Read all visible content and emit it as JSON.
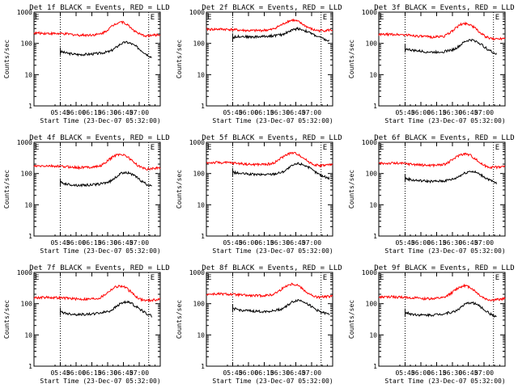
{
  "chart_data": [
    {
      "type": "line",
      "title": "Det 1f BLACK = Events, RED = LLD",
      "ylabel": "Counts/sec",
      "xlabel": "Start Time (23-Dec-07 05:32:00)",
      "marker_label": "E",
      "yscale": "log",
      "ylim": [
        1,
        1000
      ],
      "ytick_labels": [
        "1",
        "10",
        "100",
        "1000"
      ],
      "xtick_labels": [
        "05:45",
        "06:00",
        "06:15",
        "06:30",
        "06:45",
        "07:00"
      ],
      "x_range_minutes": [
        -12,
        108
      ],
      "vlines_minutes": [
        13,
        97
      ],
      "series": [
        {
          "name": "Events",
          "color": "#000000",
          "x_minutes": [
            13,
            20,
            30,
            40,
            50,
            60,
            65,
            70,
            75,
            80,
            85,
            90,
            95,
            100
          ],
          "values": [
            55,
            48,
            44,
            45,
            48,
            55,
            70,
            95,
            110,
            100,
            80,
            60,
            45,
            36
          ]
        },
        {
          "name": "LLD",
          "color": "#ff0000",
          "x_minutes": [
            -12,
            0,
            10,
            20,
            30,
            40,
            50,
            55,
            60,
            65,
            70,
            75,
            80,
            85,
            90,
            95,
            100,
            108
          ],
          "values": [
            215,
            210,
            205,
            200,
            185,
            185,
            195,
            230,
            310,
            420,
            500,
            440,
            320,
            230,
            185,
            175,
            180,
            190
          ]
        }
      ]
    },
    {
      "type": "line",
      "title": "Det 2f BLACK = Events, RED = LLD",
      "ylabel": "Counts/sec",
      "xlabel": "Start Time (23-Dec-07 05:32:00)",
      "marker_label": "E",
      "yscale": "log",
      "ylim": [
        1,
        1000
      ],
      "ytick_labels": [
        "1",
        "10",
        "100",
        "1000"
      ],
      "xtick_labels": [
        "05:45",
        "06:00",
        "06:15",
        "06:30",
        "06:45",
        "07:00"
      ],
      "x_range_minutes": [
        -12,
        108
      ],
      "vlines_minutes": [
        13,
        97
      ],
      "series": [
        {
          "name": "Events",
          "color": "#000000",
          "x_minutes": [
            13,
            20,
            30,
            40,
            50,
            60,
            65,
            70,
            75,
            80,
            85,
            90,
            95,
            100,
            105
          ],
          "values": [
            155,
            170,
            160,
            165,
            175,
            190,
            230,
            270,
            300,
            270,
            230,
            190,
            160,
            135,
            115
          ]
        },
        {
          "name": "LLD",
          "color": "#ff0000",
          "x_minutes": [
            -12,
            0,
            10,
            20,
            30,
            40,
            50,
            55,
            60,
            65,
            70,
            75,
            80,
            85,
            90,
            95,
            100,
            108
          ],
          "values": [
            280,
            285,
            280,
            265,
            255,
            260,
            275,
            330,
            400,
            500,
            560,
            500,
            400,
            320,
            270,
            255,
            260,
            270
          ]
        }
      ]
    },
    {
      "type": "line",
      "title": "Det 3f BLACK = Events, RED = LLD",
      "ylabel": "Counts/sec",
      "xlabel": "Start Time (23-Dec-07 05:32:00)",
      "marker_label": "E",
      "yscale": "log",
      "ylim": [
        1,
        1000
      ],
      "ytick_labels": [
        "1",
        "10",
        "100",
        "1000"
      ],
      "xtick_labels": [
        "05:45",
        "06:00",
        "06:15",
        "06:30",
        "06:45",
        "07:00"
      ],
      "x_range_minutes": [
        -12,
        108
      ],
      "vlines_minutes": [
        13,
        97
      ],
      "series": [
        {
          "name": "Events",
          "color": "#000000",
          "x_minutes": [
            13,
            20,
            30,
            40,
            50,
            60,
            65,
            70,
            75,
            80,
            85,
            90,
            95,
            100
          ],
          "values": [
            68,
            60,
            55,
            52,
            55,
            65,
            85,
            115,
            130,
            120,
            95,
            70,
            55,
            45
          ]
        },
        {
          "name": "LLD",
          "color": "#ff0000",
          "x_minutes": [
            -12,
            0,
            10,
            20,
            30,
            40,
            50,
            55,
            60,
            65,
            70,
            75,
            80,
            85,
            90,
            95,
            100,
            108
          ],
          "values": [
            190,
            195,
            190,
            180,
            165,
            160,
            170,
            210,
            290,
            390,
            440,
            400,
            300,
            210,
            160,
            140,
            140,
            150
          ]
        }
      ]
    },
    {
      "type": "line",
      "title": "Det 4f BLACK = Events, RED = LLD",
      "ylabel": "Counts/sec",
      "xlabel": "Start Time (23-Dec-07 05:32:00)",
      "marker_label": "E",
      "yscale": "log",
      "ylim": [
        1,
        1000
      ],
      "ytick_labels": [
        "1",
        "10",
        "100",
        "1000"
      ],
      "xtick_labels": [
        "05:45",
        "06:00",
        "06:15",
        "06:30",
        "06:45",
        "07:00"
      ],
      "x_range_minutes": [
        -12,
        108
      ],
      "vlines_minutes": [
        13,
        97
      ],
      "series": [
        {
          "name": "Events",
          "color": "#000000",
          "x_minutes": [
            13,
            20,
            30,
            40,
            50,
            60,
            65,
            70,
            75,
            80,
            85,
            90,
            95,
            100
          ],
          "values": [
            52,
            45,
            42,
            43,
            46,
            55,
            72,
            98,
            112,
            100,
            78,
            58,
            45,
            38
          ]
        },
        {
          "name": "LLD",
          "color": "#ff0000",
          "x_minutes": [
            -12,
            0,
            10,
            20,
            30,
            40,
            50,
            55,
            60,
            65,
            70,
            75,
            80,
            85,
            90,
            95,
            100,
            108
          ],
          "values": [
            170,
            175,
            170,
            165,
            155,
            160,
            170,
            210,
            290,
            380,
            420,
            380,
            280,
            200,
            155,
            140,
            145,
            155
          ]
        }
      ]
    },
    {
      "type": "line",
      "title": "Det 5f BLACK = Events, RED = LLD",
      "ylabel": "Counts/sec",
      "xlabel": "Start Time (23-Dec-07 05:32:00)",
      "marker_label": "E",
      "yscale": "log",
      "ylim": [
        1,
        1000
      ],
      "ytick_labels": [
        "1",
        "10",
        "100",
        "1000"
      ],
      "xtick_labels": [
        "05:45",
        "06:00",
        "06:15",
        "06:30",
        "06:45",
        "07:00"
      ],
      "x_range_minutes": [
        -12,
        108
      ],
      "vlines_minutes": [
        13,
        97
      ],
      "series": [
        {
          "name": "Events",
          "color": "#000000",
          "x_minutes": [
            13,
            20,
            30,
            40,
            50,
            60,
            65,
            70,
            75,
            80,
            85,
            90,
            95,
            100,
            105
          ],
          "values": [
            110,
            100,
            95,
            92,
            95,
            110,
            140,
            180,
            210,
            195,
            160,
            120,
            95,
            80,
            70
          ]
        },
        {
          "name": "LLD",
          "color": "#ff0000",
          "x_minutes": [
            -12,
            0,
            10,
            20,
            30,
            40,
            50,
            55,
            60,
            65,
            70,
            75,
            80,
            85,
            90,
            95,
            100,
            108
          ],
          "values": [
            220,
            225,
            220,
            210,
            195,
            195,
            205,
            250,
            330,
            420,
            460,
            420,
            320,
            240,
            195,
            180,
            185,
            195
          ]
        }
      ]
    },
    {
      "type": "line",
      "title": "Det 6f BLACK = Events, RED = LLD",
      "ylabel": "Counts/sec",
      "xlabel": "Start Time (23-Dec-07 05:32:00)",
      "marker_label": "E",
      "yscale": "log",
      "ylim": [
        1,
        1000
      ],
      "ytick_labels": [
        "1",
        "10",
        "100",
        "1000"
      ],
      "xtick_labels": [
        "05:45",
        "06:00",
        "06:15",
        "06:30",
        "06:45",
        "07:00"
      ],
      "x_range_minutes": [
        -12,
        108
      ],
      "vlines_minutes": [
        13,
        97
      ],
      "series": [
        {
          "name": "Events",
          "color": "#000000",
          "x_minutes": [
            13,
            20,
            30,
            40,
            50,
            60,
            65,
            70,
            75,
            80,
            85,
            90,
            95,
            100
          ],
          "values": [
            70,
            62,
            58,
            56,
            58,
            68,
            85,
            105,
            120,
            110,
            90,
            72,
            58,
            48
          ]
        },
        {
          "name": "LLD",
          "color": "#ff0000",
          "x_minutes": [
            -12,
            0,
            10,
            20,
            30,
            40,
            50,
            55,
            60,
            65,
            70,
            75,
            80,
            85,
            90,
            95,
            100,
            108
          ],
          "values": [
            210,
            215,
            210,
            200,
            185,
            185,
            195,
            235,
            310,
            400,
            430,
            390,
            290,
            210,
            170,
            160,
            160,
            170
          ]
        }
      ]
    },
    {
      "type": "line",
      "title": "Det 7f BLACK = Events, RED = LLD",
      "ylabel": "Counts/sec",
      "xlabel": "Start Time (23-Dec-07 05:32:00)",
      "marker_label": "E",
      "yscale": "log",
      "ylim": [
        1,
        1000
      ],
      "ytick_labels": [
        "1",
        "10",
        "100",
        "1000"
      ],
      "xtick_labels": [
        "05:45",
        "06:00",
        "06:15",
        "06:30",
        "06:45",
        "07:00"
      ],
      "x_range_minutes": [
        -12,
        108
      ],
      "vlines_minutes": [
        13,
        97
      ],
      "series": [
        {
          "name": "Events",
          "color": "#000000",
          "x_minutes": [
            13,
            20,
            30,
            40,
            50,
            60,
            65,
            70,
            75,
            80,
            85,
            90,
            95,
            100
          ],
          "values": [
            55,
            48,
            45,
            46,
            50,
            58,
            75,
            100,
            115,
            105,
            82,
            62,
            48,
            40
          ]
        },
        {
          "name": "LLD",
          "color": "#ff0000",
          "x_minutes": [
            -12,
            0,
            10,
            20,
            30,
            40,
            50,
            55,
            60,
            65,
            70,
            75,
            80,
            85,
            90,
            95,
            100,
            108
          ],
          "values": [
            155,
            160,
            155,
            150,
            140,
            140,
            150,
            190,
            260,
            340,
            370,
            330,
            240,
            170,
            135,
            125,
            130,
            140
          ]
        }
      ]
    },
    {
      "type": "line",
      "title": "Det 8f BLACK = Events, RED = LLD",
      "ylabel": "Counts/sec",
      "xlabel": "Start Time (23-Dec-07 05:32:00)",
      "marker_label": "E",
      "yscale": "log",
      "ylim": [
        1,
        1000
      ],
      "ytick_labels": [
        "1",
        "10",
        "100",
        "1000"
      ],
      "xtick_labels": [
        "05:45",
        "06:00",
        "06:15",
        "06:30",
        "06:45",
        "07:00"
      ],
      "x_range_minutes": [
        -12,
        108
      ],
      "vlines_minutes": [
        13,
        97
      ],
      "series": [
        {
          "name": "Events",
          "color": "#000000",
          "x_minutes": [
            13,
            20,
            30,
            40,
            50,
            60,
            65,
            70,
            75,
            80,
            85,
            90,
            95,
            100,
            105
          ],
          "values": [
            70,
            62,
            58,
            56,
            58,
            68,
            88,
            115,
            130,
            120,
            95,
            72,
            58,
            50,
            45
          ]
        },
        {
          "name": "LLD",
          "color": "#ff0000",
          "x_minutes": [
            -12,
            0,
            10,
            20,
            30,
            40,
            50,
            55,
            60,
            65,
            70,
            75,
            80,
            85,
            90,
            95,
            100,
            108
          ],
          "values": [
            200,
            205,
            200,
            190,
            180,
            180,
            190,
            230,
            300,
            390,
            430,
            390,
            290,
            210,
            170,
            160,
            165,
            175
          ]
        }
      ]
    },
    {
      "type": "line",
      "title": "Det 9f BLACK = Events, RED = LLD",
      "ylabel": "Counts/sec",
      "xlabel": "Start Time (23-Dec-07 05:32:00)",
      "marker_label": "E",
      "yscale": "log",
      "ylim": [
        1,
        1000
      ],
      "ytick_labels": [
        "1",
        "10",
        "100",
        "1000"
      ],
      "xtick_labels": [
        "05:45",
        "06:00",
        "06:15",
        "06:30",
        "06:45",
        "07:00"
      ],
      "x_range_minutes": [
        -12,
        108
      ],
      "vlines_minutes": [
        13,
        97
      ],
      "series": [
        {
          "name": "Events",
          "color": "#000000",
          "x_minutes": [
            13,
            20,
            30,
            40,
            50,
            60,
            65,
            70,
            75,
            80,
            85,
            90,
            95,
            100
          ],
          "values": [
            52,
            46,
            43,
            44,
            48,
            56,
            72,
            95,
            110,
            100,
            78,
            58,
            45,
            38
          ]
        },
        {
          "name": "LLD",
          "color": "#ff0000",
          "x_minutes": [
            -12,
            0,
            10,
            20,
            30,
            40,
            50,
            55,
            60,
            65,
            70,
            75,
            80,
            85,
            90,
            95,
            100,
            108
          ],
          "values": [
            160,
            165,
            160,
            155,
            145,
            145,
            155,
            195,
            265,
            345,
            375,
            335,
            245,
            175,
            140,
            130,
            135,
            145
          ]
        }
      ]
    }
  ]
}
